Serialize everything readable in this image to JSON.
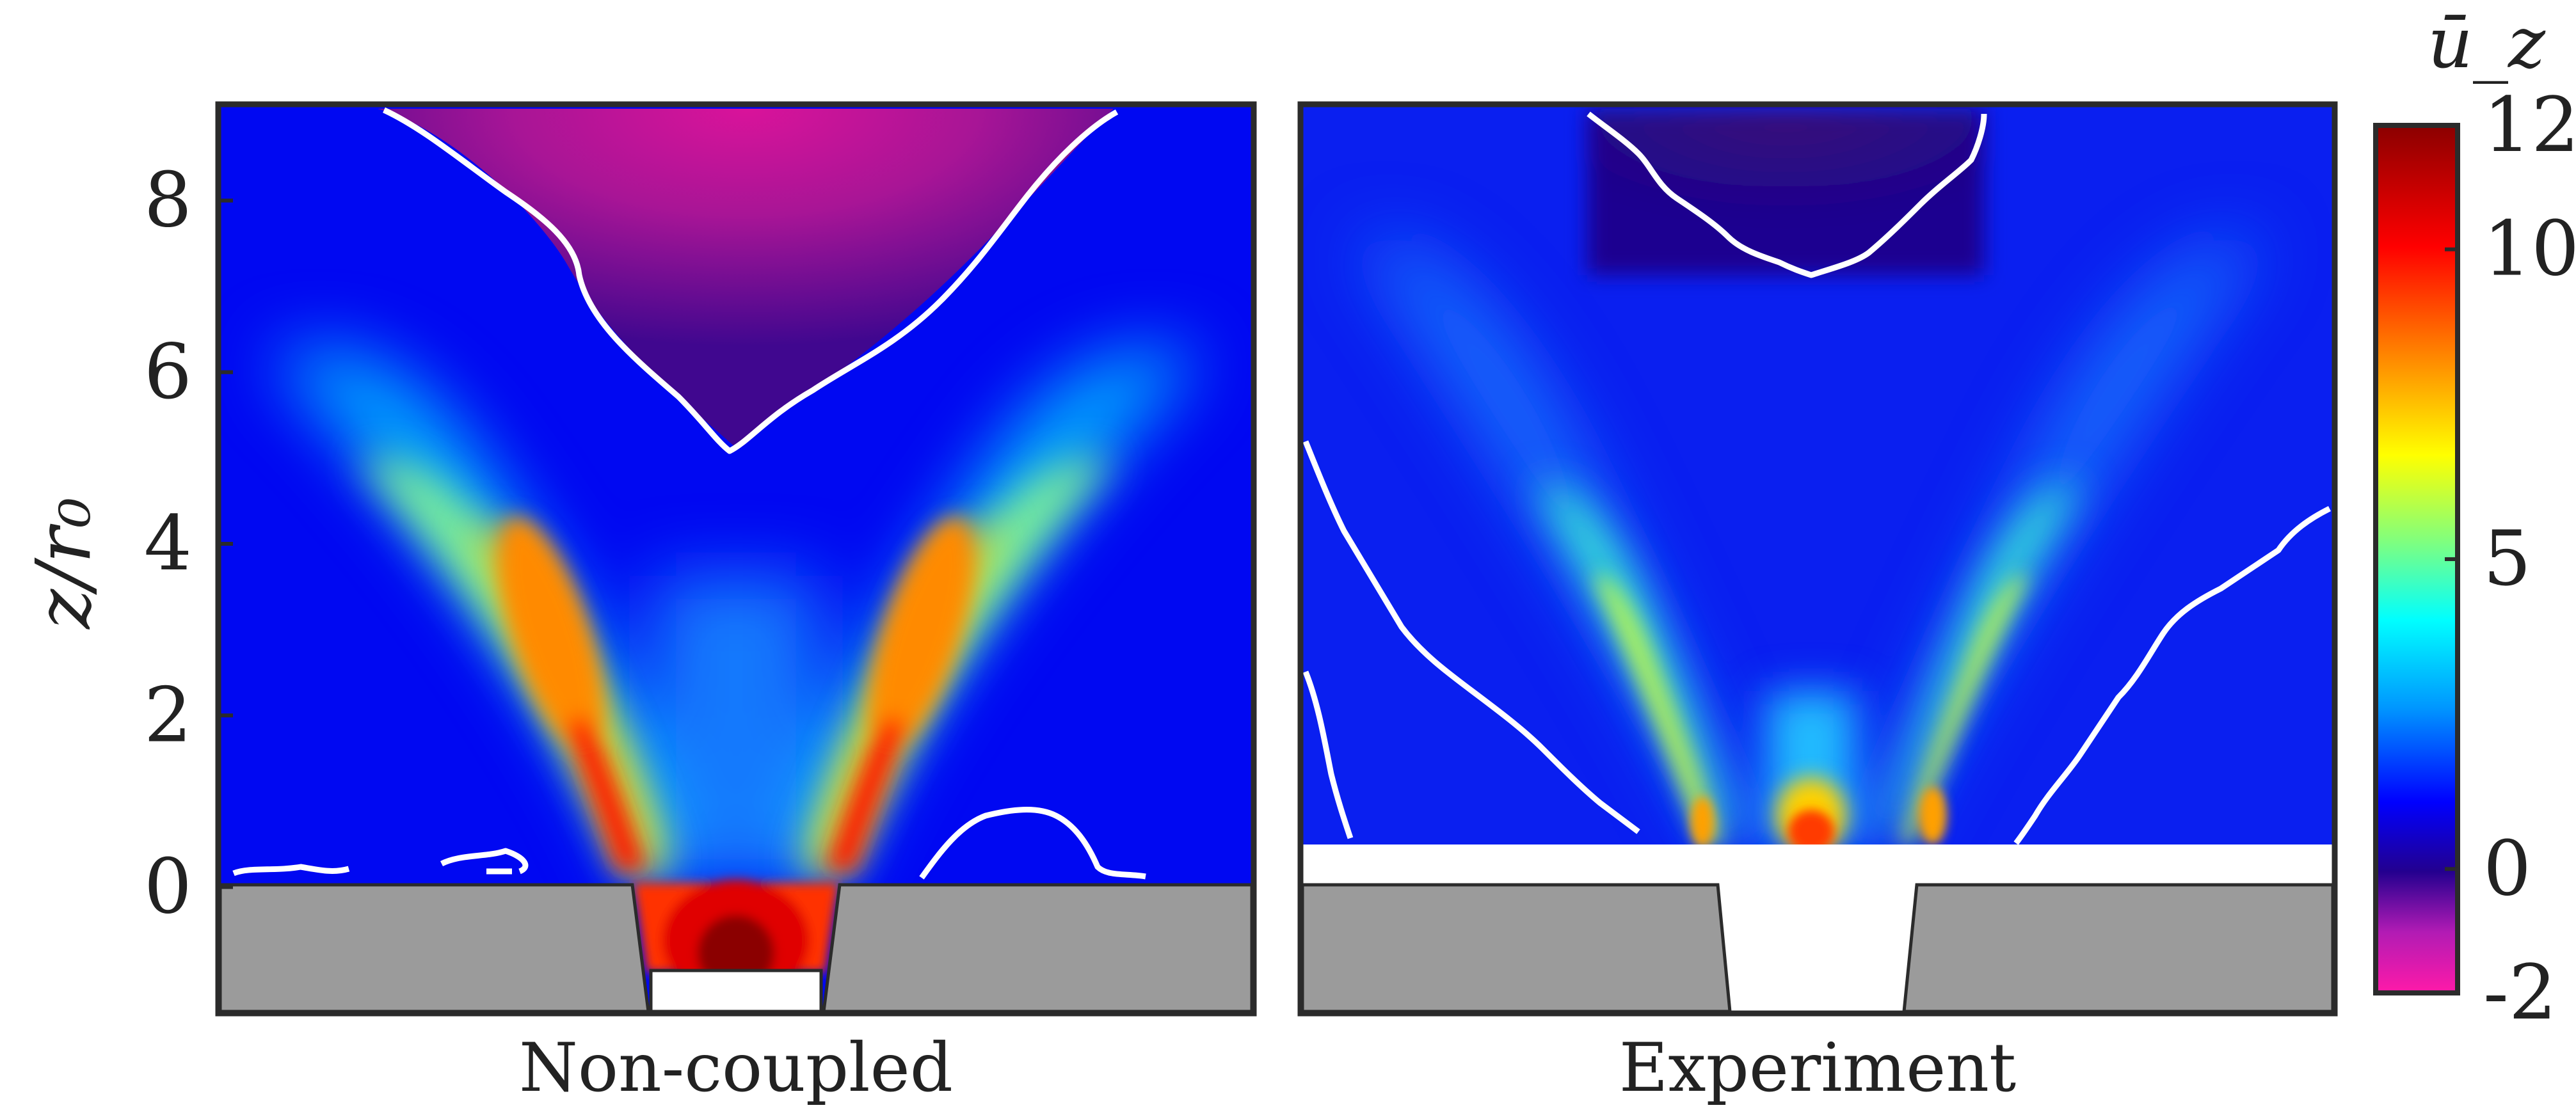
{
  "chart_data": [
    {
      "type": "heatmap",
      "panel_label": "Non-coupled",
      "ylabel": "z/r₀",
      "yticks": [
        0,
        2,
        4,
        6,
        8
      ],
      "ylim": [
        -1.45,
        9.1
      ],
      "grid": false,
      "field": "mean axial velocity",
      "features": {
        "core_max": 12,
        "peak_region": "nozzle exit and two diverging jet arms",
        "arm_peak_value": 9,
        "arm_peak_z": 3,
        "recirculation_min": -2,
        "recirculation_region": "top center, bounded by u=0 contour down to z≈4.9"
      }
    },
    {
      "type": "heatmap",
      "panel_label": "Experiment",
      "ylim": [
        -1.45,
        9.1
      ],
      "grid": false,
      "field": "mean axial velocity",
      "features": {
        "core_max": 8.5,
        "peak_region": "small jets just above z=0",
        "arm_peak_value": 5,
        "recirculation_min": -1,
        "recirculation_region": "top center closed near z≈7; side regions below diagonal u=0 contours"
      }
    }
  ],
  "colorbar": {
    "label": "ū_z",
    "ticks": [
      -2,
      0,
      5,
      10,
      12
    ],
    "range": [
      -2,
      12
    ],
    "colormap": [
      "#ff1aa8",
      "#b21bb4",
      "#23008f",
      "#0000ff",
      "#0098ff",
      "#00ffff",
      "#7fff7f",
      "#ffff00",
      "#ff8000",
      "#ff0000",
      "#8b0000"
    ]
  },
  "colors": {
    "nozzle_gray": "#9b9b9b",
    "contour": "#ffffff",
    "frame": "#2b2b2b"
  }
}
